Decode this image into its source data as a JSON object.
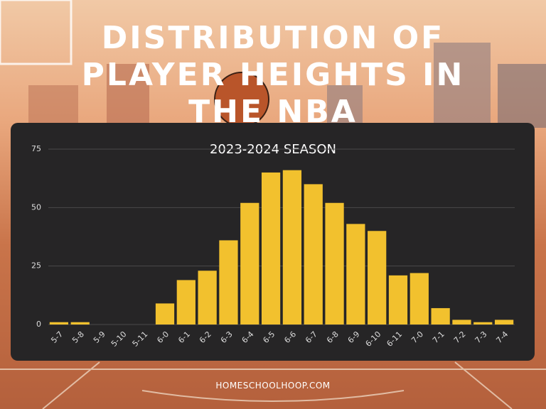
{
  "chart_data": {
    "type": "bar",
    "title": "DISTRIBUTION OF PLAYER HEIGHTS IN THE NBA",
    "subtitle": "2023-2024 SEASON",
    "footer": "HOMESCHOOLHOOP.COM",
    "categories": [
      "5-7",
      "5-8",
      "5-9",
      "5-10",
      "5-11",
      "6-0",
      "6-1",
      "6-2",
      "6-3",
      "6-4",
      "6-5",
      "6-6",
      "6-7",
      "6-8",
      "6-9",
      "6-10",
      "6-11",
      "7-0",
      "7-1",
      "7-2",
      "7-3",
      "7-4"
    ],
    "values": [
      1,
      1,
      0,
      0,
      0,
      9,
      19,
      23,
      36,
      52,
      65,
      66,
      60,
      52,
      43,
      40,
      21,
      22,
      7,
      2,
      1,
      2
    ],
    "color": "#f2c12e",
    "ylim": [
      0,
      75
    ],
    "yticks": [
      0,
      25,
      50,
      75
    ],
    "grid": true
  }
}
